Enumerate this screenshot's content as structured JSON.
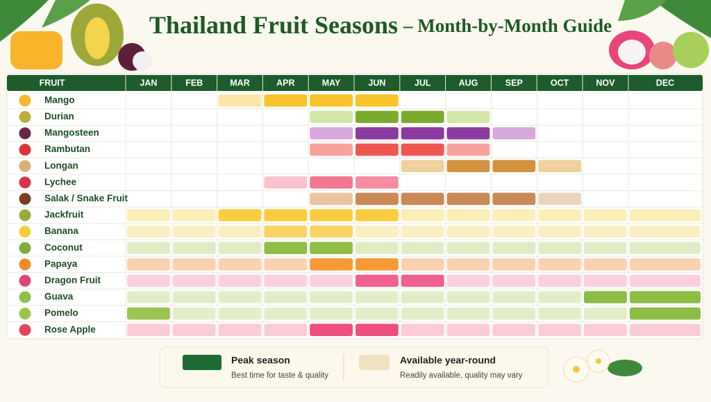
{
  "title": "Thailand Fruit Seasons",
  "title_suffix": "– Month-by-Month Guide",
  "table": {
    "header": {
      "fruit": "FRUIT",
      "months": [
        "JAN",
        "FEB",
        "MAR",
        "APR",
        "MAY",
        "JUN",
        "JUL",
        "AUG",
        "SEP",
        "OCT",
        "NOV",
        "DEC"
      ]
    },
    "rows": [
      {
        "name": "Mango",
        "icon": "#f5b82a",
        "cells": [
          null,
          null,
          "#fbe6a6",
          "#f8c42b",
          "#f8c42b",
          "#f8c42b",
          null,
          null,
          null,
          null,
          null,
          null
        ]
      },
      {
        "name": "Durian",
        "icon": "#b8b03a",
        "cells": [
          null,
          null,
          null,
          null,
          "#d4e6a8",
          "#7aab2f",
          "#7aab2f",
          "#d4e6a8",
          null,
          null,
          null,
          null
        ]
      },
      {
        "name": "Mangosteen",
        "icon": "#6a2444",
        "cells": [
          null,
          null,
          null,
          null,
          "#d7a9dc",
          "#8b3a9e",
          "#8b3a9e",
          "#8b3a9e",
          "#d7a9dc",
          null,
          null,
          null
        ]
      },
      {
        "name": "Rambutan",
        "icon": "#d8353a",
        "cells": [
          null,
          null,
          null,
          null,
          "#f7a39c",
          "#ef564f",
          "#ef564f",
          "#f7a39c",
          null,
          null,
          null,
          null
        ]
      },
      {
        "name": "Longan",
        "icon": "#d9b07a",
        "cells": [
          null,
          null,
          null,
          null,
          null,
          null,
          "#f0d09c",
          "#d4913f",
          "#d4913f",
          "#f0d09c",
          null,
          null
        ]
      },
      {
        "name": "Lychee",
        "icon": "#d8334a",
        "cells": [
          null,
          null,
          null,
          "#f9c2cc",
          "#f07890",
          "#f48ca2",
          null,
          null,
          null,
          null,
          null,
          null
        ]
      },
      {
        "name": "Salak / Snake Fruit",
        "icon": "#7a3d22",
        "cells": [
          null,
          null,
          null,
          null,
          "#e9c49e",
          "#c98a55",
          "#c98a55",
          "#c98a55",
          "#c98a55",
          "#ecd6bb",
          null,
          null
        ]
      },
      {
        "name": "Jackfruit",
        "icon": "#9bab3a",
        "cells": [
          "#fbeeb6",
          "#fbeeb6",
          "#f9cd3f",
          "#f9cd3f",
          "#f9cd3f",
          "#f9cd3f",
          "#fbeeb6",
          "#fbeeb6",
          "#fbeeb6",
          "#fbeeb6",
          "#fbeeb6",
          "#fbeeb6"
        ]
      },
      {
        "name": "Banana",
        "icon": "#f3d03a",
        "cells": [
          "#faefc2",
          "#faefc2",
          "#faefc2",
          "#f9d465",
          "#f9d465",
          "#faefc2",
          "#faefc2",
          "#faefc2",
          "#faefc2",
          "#faefc2",
          "#faefc2",
          "#faefc2"
        ]
      },
      {
        "name": "Coconut",
        "icon": "#7fae3a",
        "cells": [
          "#dfecc4",
          "#dfecc4",
          "#dfecc4",
          "#8fbd45",
          "#8fbd45",
          "#dfecc4",
          "#dfecc4",
          "#dfecc4",
          "#dfecc4",
          "#dfecc4",
          "#dfecc4",
          "#dfecc4"
        ]
      },
      {
        "name": "Papaya",
        "icon": "#f08a2a",
        "cells": [
          "#fbd2ae",
          "#fbd2ae",
          "#fbd2ae",
          "#fbd2ae",
          "#f79a35",
          "#f79a35",
          "#fbd2ae",
          "#fbd2ae",
          "#fbd2ae",
          "#fbd2ae",
          "#fbd2ae",
          "#fbd2ae"
        ]
      },
      {
        "name": "Dragon Fruit",
        "icon": "#e0457a",
        "cells": [
          "#fbd0df",
          "#fbd0df",
          "#fbd0df",
          "#fbd0df",
          "#fbd0df",
          "#f0608f",
          "#f0608f",
          "#fbd0df",
          "#fbd0df",
          "#fbd0df",
          "#fbd0df",
          "#fbd0df"
        ]
      },
      {
        "name": "Guava",
        "icon": "#8cc14a",
        "cells": [
          "#e2edc7",
          "#e2edc7",
          "#e2edc7",
          "#e2edc7",
          "#e2edc7",
          "#e2edc7",
          "#e2edc7",
          "#e2edc7",
          "#e2edc7",
          "#e2edc7",
          "#8cbd45",
          "#8cbd45"
        ]
      },
      {
        "name": "Pomelo",
        "icon": "#9cc64a",
        "cells": [
          "#9bc452",
          "#e3eec9",
          "#e3eec9",
          "#e3eec9",
          "#e3eec9",
          "#e3eec9",
          "#e3eec9",
          "#e3eec9",
          "#e3eec9",
          "#e3eec9",
          "#e3eec9",
          "#8cbd45"
        ]
      },
      {
        "name": "Rose Apple",
        "icon": "#e0455a",
        "cells": [
          "#fbcbd8",
          "#fbcbd8",
          "#fbcbd8",
          "#fbcbd8",
          "#ef4f80",
          "#ef4f80",
          "#fbcbd8",
          "#fbcbd8",
          "#fbcbd8",
          "#fbcbd8",
          "#fbcbd8",
          "#fbcbd8"
        ]
      }
    ]
  },
  "legend": [
    {
      "label": "Peak season",
      "note": "Best time for taste & quality",
      "color": "#1e6b34"
    },
    {
      "label": "Available year-round",
      "note": "Readily available, quality may vary",
      "color": "#f3e2c0"
    }
  ]
}
